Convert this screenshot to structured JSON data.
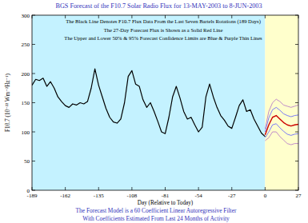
{
  "chart_data": {
    "type": "line",
    "title": "BGS Forecast of the F10.7 Solar Radio Flux for  13-MAY-2003 to 8-JUN-2003",
    "x_label": "Day (Relative to Today)",
    "y_label": "F10.7 (10⁻²² Wm⁻²Hz⁻¹)",
    "annotations": [
      "The Black Line Denotes F10.7 Flux Data From the Last Seven Bartels Rotations (189 Days)",
      "The 27-Day Forecast Flux is Shown as a Solid Red Line",
      "The Upper and Lower 50% & 95% Forecast Confidence Limits are Blue & Purple Thin Lines"
    ],
    "footer": [
      "The Forecast Model is a 60 Coefficient Linear Autoregressive Filter",
      "With Coefficients Estimated From Last 24 Months of Activity"
    ],
    "xlim": [
      -189,
      27
    ],
    "ylim": [
      0,
      300
    ],
    "xticks": [
      -189,
      -162,
      -135,
      -108,
      -81,
      -54,
      -27,
      0,
      27
    ],
    "yticks": [
      0,
      50,
      100,
      150,
      200,
      250,
      300
    ],
    "grid": false,
    "series": [
      {
        "color": "#000000",
        "x": [
          -189,
          -186,
          -183,
          -180,
          -177,
          -174,
          -171,
          -168,
          -165,
          -162,
          -159,
          -156,
          -153,
          -150,
          -147,
          -144,
          -141,
          -138,
          -135,
          -132,
          -129,
          -126,
          -123,
          -120,
          -117,
          -114,
          -111,
          -108,
          -105,
          -102,
          -99,
          -96,
          -93,
          -90,
          -87,
          -84,
          -81,
          -78,
          -75,
          -72,
          -69,
          -66,
          -63,
          -60,
          -57,
          -54,
          -51,
          -48,
          -45,
          -42,
          -39,
          -36,
          -33,
          -30,
          -27,
          -24,
          -21,
          -18,
          -15,
          -12,
          -9,
          -6,
          -3,
          0
        ],
        "values": [
          180,
          190,
          188,
          192,
          178,
          186,
          175,
          160,
          152,
          145,
          142,
          148,
          146,
          150,
          148,
          152,
          175,
          208,
          180,
          160,
          140,
          125,
          117,
          115,
          122,
          150,
          195,
          205,
          182,
          178,
          155,
          142,
          150,
          135,
          118,
          100,
          97,
          125,
          160,
          178,
          158,
          135,
          122,
          125,
          112,
          100,
          108,
          160,
          182,
          160,
          142,
          128,
          120,
          110,
          106,
          125,
          145,
          155,
          135,
          138,
          122,
          110,
          98,
          92
        ]
      },
      {
        "color": "#cc0000",
        "x": [
          0,
          3,
          6,
          9,
          12,
          15,
          18,
          21,
          24,
          27
        ],
        "values": [
          95,
          112,
          125,
          128,
          122,
          116,
          112,
          110,
          112,
          113
        ]
      },
      {
        "color": "#5a5aff",
        "x": [
          0,
          3,
          6,
          9,
          12,
          15,
          18,
          21,
          24,
          27
        ],
        "values": [
          100,
          124,
          138,
          142,
          137,
          131,
          128,
          126,
          128,
          129
        ]
      },
      {
        "color": "#5a5aff",
        "x": [
          0,
          3,
          6,
          9,
          12,
          15,
          18,
          21,
          24,
          27
        ],
        "values": [
          90,
          100,
          112,
          114,
          107,
          101,
          96,
          94,
          96,
          97
        ]
      },
      {
        "color": "#b070c8",
        "x": [
          0,
          3,
          6,
          9,
          12,
          15,
          18,
          21,
          24,
          27
        ],
        "values": [
          105,
          135,
          150,
          156,
          152,
          146,
          144,
          142,
          144,
          146
        ]
      },
      {
        "color": "#b070c8",
        "x": [
          0,
          3,
          6,
          9,
          12,
          15,
          18,
          21,
          24,
          27
        ],
        "values": [
          85,
          90,
          100,
          100,
          92,
          86,
          80,
          78,
          80,
          80
        ]
      }
    ]
  }
}
